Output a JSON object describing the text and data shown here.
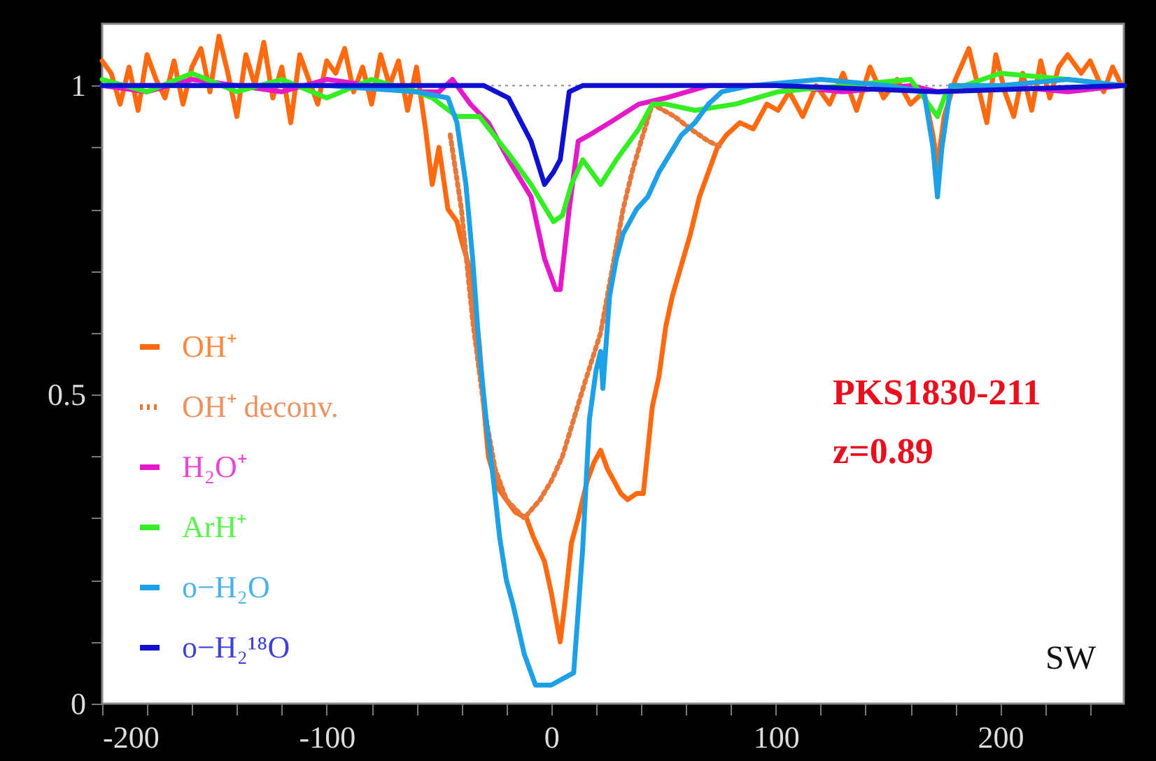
{
  "chart_data": {
    "type": "line",
    "xlim": [
      -200,
      255
    ],
    "ylim": [
      0,
      1.1
    ],
    "xticks": [
      -200,
      {
        "value": -180,
        "label": null
      },
      {
        "value": -160,
        "label": null
      },
      {
        "value": -140,
        "label": null
      },
      {
        "value": -120,
        "label": null
      },
      -100,
      {
        "value": -80,
        "label": null
      },
      {
        "value": -60,
        "label": null
      },
      {
        "value": -40,
        "label": null
      },
      {
        "value": -20,
        "label": null
      },
      0,
      {
        "value": 20,
        "label": null
      },
      {
        "value": 40,
        "label": null
      },
      {
        "value": 60,
        "label": null
      },
      {
        "value": 80,
        "label": null
      },
      100,
      {
        "value": 120,
        "label": null
      },
      {
        "value": 140,
        "label": null
      },
      {
        "value": 160,
        "label": null
      },
      {
        "value": 180,
        "label": null
      },
      200,
      {
        "value": 220,
        "label": null
      },
      {
        "value": 240,
        "label": null
      }
    ],
    "yticks": [
      0,
      {
        "value": 0.1,
        "label": null
      },
      {
        "value": 0.2,
        "label": null
      },
      {
        "value": 0.3,
        "label": null
      },
      {
        "value": 0.4,
        "label": null
      },
      0.5,
      {
        "value": 0.6,
        "label": null
      },
      {
        "value": 0.7,
        "label": null
      },
      {
        "value": 0.8,
        "label": null
      },
      {
        "value": 0.9,
        "label": null
      },
      1
    ],
    "grid": false,
    "legend": "bottom left",
    "ref_lines": [
      {
        "axis": "y",
        "value": 1,
        "color": "#999999",
        "line_style": "dotted"
      }
    ],
    "annotations": [
      "PKS1830-211",
      "z=0.89",
      "SW"
    ],
    "series": [
      {
        "name": "OH⁺",
        "color": "#ff6a10",
        "line_style": "solid",
        "x": [
          -200,
          -196,
          -192,
          -188,
          -184,
          -180,
          -176,
          -172,
          -168,
          -164,
          -160,
          -156,
          -152,
          -148,
          -144,
          -140,
          -136,
          -132,
          -128,
          -124,
          -120,
          -116,
          -112,
          -108,
          -104,
          -100,
          -96,
          -92,
          -88,
          -84,
          -80,
          -76,
          -72,
          -68,
          -64,
          -60,
          -56,
          -53,
          -50,
          -46,
          -42,
          -40,
          -36,
          -32,
          -30,
          -28,
          -24,
          -20,
          -16,
          -11,
          -8,
          -3,
          0,
          2,
          4,
          6,
          9,
          12,
          16,
          19,
          22,
          25,
          28,
          31,
          34,
          38,
          41,
          45,
          48,
          51,
          54,
          58,
          62,
          66,
          70,
          74,
          78,
          84,
          90,
          96,
          101,
          106,
          112,
          118,
          124,
          130,
          136,
          142,
          148,
          154,
          160,
          166,
          170,
          172,
          175,
          180,
          186,
          190,
          194,
          198,
          202,
          206,
          210,
          214,
          218,
          222,
          226,
          230,
          236,
          240,
          246,
          250,
          254
        ],
        "values": [
          1.04,
          1.02,
          0.97,
          1.03,
          0.96,
          1.05,
          1.01,
          0.98,
          1.04,
          0.97,
          1.03,
          1.06,
          0.99,
          1.08,
          1.02,
          0.95,
          1.05,
          1.0,
          1.07,
          0.98,
          1.03,
          0.94,
          1.05,
          1.01,
          0.97,
          1.04,
          1.02,
          1.06,
          0.99,
          1.03,
          0.97,
          1.05,
          1.0,
          1.04,
          0.96,
          1.03,
          0.93,
          0.84,
          0.9,
          0.8,
          0.78,
          0.75,
          0.7,
          0.58,
          0.48,
          0.4,
          0.35,
          0.33,
          0.31,
          0.3,
          0.27,
          0.23,
          0.18,
          0.14,
          0.1,
          0.16,
          0.26,
          0.3,
          0.36,
          0.39,
          0.41,
          0.38,
          0.36,
          0.34,
          0.33,
          0.34,
          0.34,
          0.48,
          0.53,
          0.61,
          0.66,
          0.71,
          0.76,
          0.82,
          0.86,
          0.9,
          0.92,
          0.94,
          0.93,
          0.97,
          0.96,
          0.99,
          0.95,
          1.0,
          0.97,
          1.02,
          0.96,
          1.03,
          0.98,
          1.01,
          0.97,
          0.99,
          0.92,
          0.87,
          0.95,
          1.01,
          1.06,
          1.0,
          0.94,
          1.05,
          0.99,
          0.95,
          1.02,
          0.96,
          1.04,
          0.98,
          1.03,
          1.05,
          1.02,
          1.04,
          0.99,
          1.03,
          1.0
        ]
      },
      {
        "name": "OH⁺ deconv.",
        "color": "#e8773a",
        "line_style": "dotted",
        "x": [
          -45,
          -40,
          -35,
          -30,
          -25,
          -20,
          -12,
          -5,
          0,
          5,
          10,
          15,
          22,
          27,
          32,
          36,
          40,
          45,
          50,
          55,
          62,
          70,
          76
        ],
        "values": [
          0.92,
          0.8,
          0.62,
          0.48,
          0.38,
          0.33,
          0.3,
          0.33,
          0.36,
          0.4,
          0.46,
          0.52,
          0.6,
          0.7,
          0.8,
          0.86,
          0.91,
          0.97,
          0.96,
          0.95,
          0.93,
          0.91,
          0.9
        ]
      },
      {
        "name": "H₂O⁺",
        "color": "#e619c8",
        "line_style": "solid",
        "x": [
          -200,
          -180,
          -160,
          -140,
          -120,
          -100,
          -80,
          -60,
          -50,
          -44,
          -40,
          -36,
          -28,
          -19,
          -9,
          -3,
          2,
          4,
          8,
          12,
          17,
          26,
          39,
          51,
          70,
          100,
          130,
          160,
          172,
          200,
          230,
          255
        ],
        "values": [
          1.0,
          0.99,
          1.01,
          1.0,
          0.99,
          1.01,
          1.0,
          0.99,
          0.99,
          1.01,
          0.99,
          0.97,
          0.94,
          0.88,
          0.82,
          0.72,
          0.67,
          0.67,
          0.8,
          0.91,
          0.92,
          0.94,
          0.97,
          0.98,
          1.0,
          1.0,
          0.99,
          1.0,
          0.99,
          1.0,
          0.99,
          1.0
        ]
      },
      {
        "name": "ArH⁺",
        "color": "#33ee22",
        "line_style": "solid",
        "x": [
          -200,
          -180,
          -160,
          -140,
          -120,
          -100,
          -80,
          -60,
          -53,
          -42,
          -32,
          -19,
          -9,
          1,
          5,
          9,
          14,
          22,
          29,
          39,
          45,
          51,
          64,
          82,
          101,
          130,
          160,
          168,
          172,
          176,
          200,
          230,
          255
        ],
        "values": [
          1.01,
          0.99,
          1.02,
          0.99,
          1.01,
          0.98,
          1.01,
          0.99,
          0.98,
          0.95,
          0.95,
          0.89,
          0.84,
          0.78,
          0.79,
          0.84,
          0.88,
          0.84,
          0.88,
          0.93,
          0.97,
          0.97,
          0.96,
          0.97,
          0.99,
          1.0,
          1.01,
          0.97,
          0.95,
          0.99,
          1.02,
          1.01,
          1.0
        ]
      },
      {
        "name": "o−H₂O",
        "color": "#1ea0e6",
        "line_style": "solid",
        "x": [
          -200,
          -150,
          -100,
          -60,
          -46,
          -42,
          -38,
          -35,
          -32,
          -29,
          -26,
          -23,
          -20,
          -17,
          -12,
          -7,
          0,
          5,
          10,
          12,
          14,
          17,
          20,
          22,
          23,
          26,
          29,
          32,
          38,
          43,
          48,
          53,
          58,
          64,
          70,
          76,
          89,
          120,
          150,
          166,
          170,
          172,
          174,
          178,
          200,
          230,
          255
        ],
        "values": [
          1.0,
          1.0,
          1.0,
          0.99,
          0.98,
          0.94,
          0.84,
          0.72,
          0.57,
          0.46,
          0.37,
          0.27,
          0.2,
          0.16,
          0.08,
          0.03,
          0.03,
          0.04,
          0.05,
          0.15,
          0.25,
          0.46,
          0.54,
          0.57,
          0.51,
          0.66,
          0.72,
          0.76,
          0.8,
          0.82,
          0.86,
          0.89,
          0.92,
          0.94,
          0.97,
          0.99,
          1.0,
          1.01,
          1.0,
          0.99,
          0.9,
          0.82,
          0.9,
          1.0,
          1.0,
          1.01,
          1.0
        ]
      },
      {
        "name": "o−H₂¹⁸O",
        "color": "#1010d0",
        "line_style": "solid",
        "x": [
          -200,
          -100,
          -50,
          -30,
          -19,
          -9,
          -3,
          1,
          4,
          8,
          14,
          50,
          100,
          172,
          255
        ],
        "values": [
          1.0,
          1.0,
          1.0,
          1.0,
          0.98,
          0.91,
          0.84,
          0.86,
          0.88,
          0.99,
          1.0,
          1.0,
          1.0,
          0.99,
          1.0
        ]
      }
    ]
  }
}
